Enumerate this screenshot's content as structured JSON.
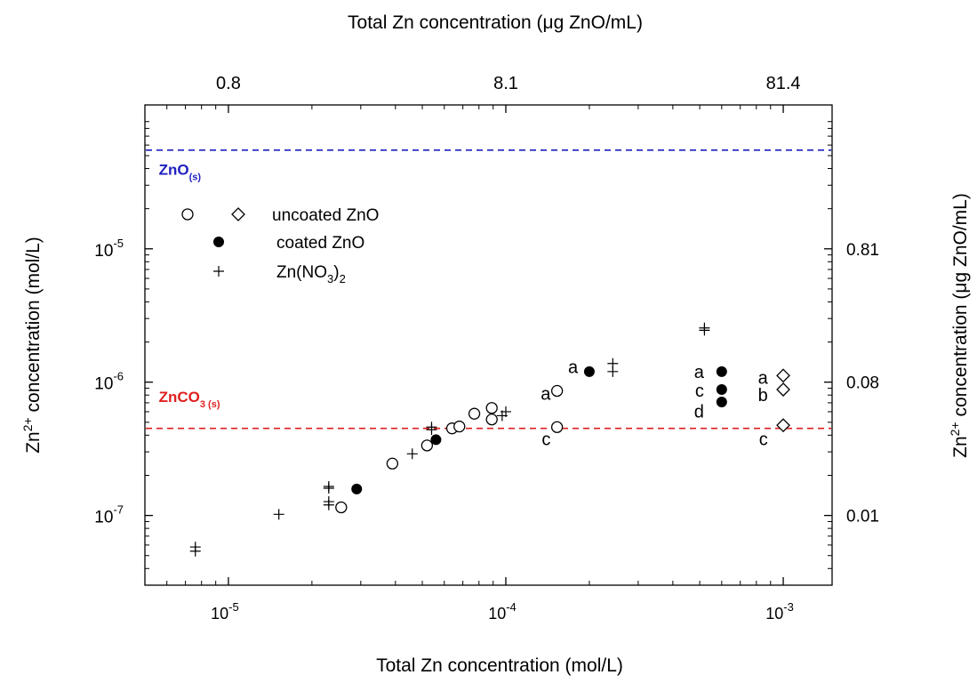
{
  "chart_data": {
    "type": "scatter",
    "x_axis_bottom": {
      "label": "Total Zn concentration (mol/L)",
      "scale": "log",
      "range": [
        5e-06,
        0.0015
      ],
      "major_ticks": [
        {
          "value": 1e-05,
          "base": "10",
          "exp": "-5"
        },
        {
          "value": 0.0001,
          "base": "10",
          "exp": "-4"
        },
        {
          "value": 0.001,
          "base": "10",
          "exp": "-3"
        }
      ]
    },
    "x_axis_top": {
      "label": "Total Zn concentration (μg ZnO/mL)",
      "ticks": [
        {
          "at": 1e-05,
          "label": "0.8"
        },
        {
          "at": 0.0001,
          "label": "8.1"
        },
        {
          "at": 0.001,
          "label": "81.4"
        }
      ]
    },
    "y_axis_left": {
      "label_prefix": "Zn",
      "label_sup": "2+",
      "label_suffix": " concentration (mol/L)",
      "scale": "log",
      "range": [
        3e-08,
        0.00012
      ],
      "major_ticks": [
        {
          "value": 1e-07,
          "base": "10",
          "exp": "-7"
        },
        {
          "value": 1e-06,
          "base": "10",
          "exp": "-6"
        },
        {
          "value": 1e-05,
          "base": "10",
          "exp": "-5"
        }
      ]
    },
    "y_axis_right": {
      "label_prefix": "Zn",
      "label_sup": "2+",
      "label_suffix": " concentration (μg ZnO/mL)",
      "ticks": [
        {
          "at": 1e-07,
          "label": "0.01"
        },
        {
          "at": 1e-06,
          "label": "0.08"
        },
        {
          "at": 1e-05,
          "label": "0.81"
        }
      ]
    },
    "reference_lines": [
      {
        "name": "ZnO",
        "subscript": "(s)",
        "y": 5.5e-05,
        "color": "#1f1fbf",
        "label_at_x": 7e-06,
        "label_at_y": 3.6e-05
      },
      {
        "name": "ZnCO",
        "subscript": "3 (s)",
        "y": 4.5e-07,
        "color": "#e01f1f",
        "label_at_x": 7e-06,
        "label_at_y": 7.1e-07
      }
    ],
    "legend": {
      "placement": "upper-left",
      "entries": [
        {
          "markers": [
            "circle-open",
            "diamond-open"
          ],
          "label": "uncoated ZnO"
        },
        {
          "markers": [
            "circle-filled"
          ],
          "label": "coated ZnO"
        },
        {
          "markers": [
            "plus"
          ],
          "label_prefix": "Zn(NO",
          "label_sub": "3",
          "label_mid": ")",
          "label_sub2": "2"
        }
      ]
    },
    "series": [
      {
        "name": "uncoated ZnO",
        "marker": "circle-open",
        "points": [
          {
            "x": 2.55e-05,
            "y": 1.15e-07
          },
          {
            "x": 3.9e-05,
            "y": 2.45e-07
          },
          {
            "x": 5.2e-05,
            "y": 3.35e-07
          },
          {
            "x": 6.4e-05,
            "y": 4.5e-07
          },
          {
            "x": 6.8e-05,
            "y": 4.65e-07
          },
          {
            "x": 7.7e-05,
            "y": 5.8e-07
          },
          {
            "x": 8.9e-05,
            "y": 5.25e-07
          },
          {
            "x": 8.9e-05,
            "y": 6.4e-07
          },
          {
            "x": 0.000153,
            "y": 8.6e-07
          },
          {
            "x": 0.000153,
            "y": 4.6e-07
          }
        ]
      },
      {
        "name": "uncoated ZnO",
        "marker": "diamond-open",
        "points": [
          {
            "x": 0.001,
            "y": 1.12e-06
          },
          {
            "x": 0.001,
            "y": 8.8e-07
          },
          {
            "x": 0.001,
            "y": 4.75e-07
          }
        ]
      },
      {
        "name": "coated ZnO",
        "marker": "circle-filled",
        "points": [
          {
            "x": 2.9e-05,
            "y": 1.58e-07
          },
          {
            "x": 5.6e-05,
            "y": 3.7e-07
          },
          {
            "x": 0.0002,
            "y": 1.2e-06
          },
          {
            "x": 0.0006,
            "y": 1.2e-06
          },
          {
            "x": 0.0006,
            "y": 8.8e-07
          },
          {
            "x": 0.0006,
            "y": 7.1e-07
          }
        ]
      },
      {
        "name": "Zn(NO3)2",
        "marker": "plus",
        "points": [
          {
            "x": 7.6e-06,
            "y": 5.4e-08
          },
          {
            "x": 7.6e-06,
            "y": 5.8e-08
          },
          {
            "x": 1.52e-05,
            "y": 1.02e-07
          },
          {
            "x": 2.3e-05,
            "y": 1.2e-07
          },
          {
            "x": 2.3e-05,
            "y": 1.27e-07
          },
          {
            "x": 2.3e-05,
            "y": 1.6e-07
          },
          {
            "x": 2.3e-05,
            "y": 1.65e-07
          },
          {
            "x": 4.6e-05,
            "y": 2.9e-07
          },
          {
            "x": 5.4e-05,
            "y": 4.4e-07
          },
          {
            "x": 5.4e-05,
            "y": 4.6e-07
          },
          {
            "x": 9.7e-05,
            "y": 5.6e-07
          },
          {
            "x": 0.0001,
            "y": 6e-07
          },
          {
            "x": 0.000243,
            "y": 1.2e-06
          },
          {
            "x": 0.000243,
            "y": 1.38e-06
          },
          {
            "x": 0.00052,
            "y": 2.45e-06
          },
          {
            "x": 0.00052,
            "y": 2.55e-06
          }
        ]
      }
    ],
    "annotations": [
      {
        "text": "a",
        "x": 0.000145,
        "y": 8.2e-07
      },
      {
        "text": "c",
        "x": 0.000145,
        "y": 3.75e-07
      },
      {
        "text": "a",
        "x": 0.000182,
        "y": 1.3e-06
      },
      {
        "text": "a",
        "x": 0.000518,
        "y": 1.2e-06
      },
      {
        "text": "c",
        "x": 0.000518,
        "y": 8.7e-07
      },
      {
        "text": "d",
        "x": 0.000518,
        "y": 6.05e-07
      },
      {
        "text": "a",
        "x": 0.00088,
        "y": 1.08e-06
      },
      {
        "text": "b",
        "x": 0.00088,
        "y": 8e-07
      },
      {
        "text": "c",
        "x": 0.00088,
        "y": 3.75e-07
      }
    ]
  }
}
